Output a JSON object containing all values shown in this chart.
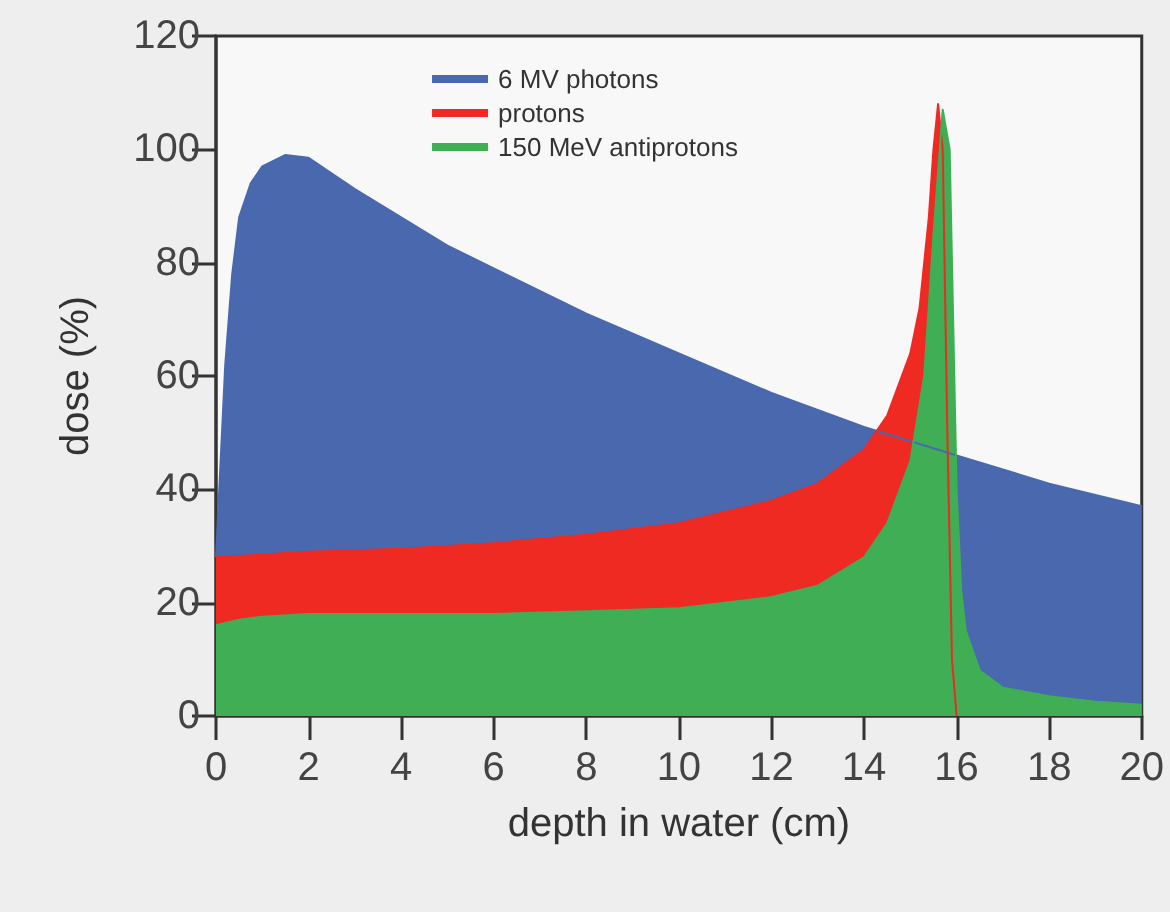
{
  "chart_data": {
    "type": "area",
    "xlabel": "depth in water (cm)",
    "ylabel": "dose (%)",
    "xlim": [
      0,
      20
    ],
    "xticks": [
      0,
      2,
      4,
      6,
      8,
      10,
      12,
      14,
      16,
      18,
      20
    ],
    "ylim": [
      0,
      120
    ],
    "yticks": [
      0,
      20,
      40,
      60,
      80,
      100,
      120
    ],
    "grid": false,
    "legend": "top",
    "series": [
      {
        "name": "6 MV photons",
        "color": "#4a68ae",
        "x": [
          0,
          0.1,
          0.2,
          0.35,
          0.5,
          0.75,
          1,
          1.5,
          2,
          3,
          4,
          5,
          6,
          8,
          10,
          12,
          14,
          16,
          18,
          20
        ],
        "values": [
          28,
          45,
          62,
          78,
          88,
          94,
          97,
          99,
          98.5,
          93,
          88,
          83,
          79,
          71,
          64,
          57,
          51,
          46,
          41,
          37
        ]
      },
      {
        "name": "protons",
        "color": "#ee2a22",
        "x": [
          0,
          1,
          2,
          4,
          6,
          8,
          10,
          11,
          12,
          13,
          13.5,
          14,
          14.5,
          15,
          15.2,
          15.4,
          15.5,
          15.6,
          15.7,
          15.8,
          15.9,
          16
        ],
        "values": [
          28,
          28.5,
          29,
          29.5,
          30.5,
          32,
          34,
          36,
          38,
          41,
          44,
          47,
          53,
          64,
          72,
          88,
          100,
          108,
          100,
          50,
          10,
          0
        ]
      },
      {
        "name": "150 MeV antiprotons",
        "color": "#3fae55",
        "x": [
          0,
          0.5,
          1,
          2,
          4,
          6,
          8,
          10,
          12,
          13,
          14,
          14.5,
          15,
          15.3,
          15.5,
          15.7,
          15.85,
          16,
          16.1,
          16.2,
          16.5,
          17,
          18,
          19,
          20
        ],
        "values": [
          16,
          17,
          17.5,
          18,
          18,
          18,
          18.5,
          19,
          21,
          23,
          28,
          34,
          45,
          60,
          85,
          107,
          100,
          40,
          22,
          15,
          8,
          5,
          3.5,
          2.5,
          2
        ]
      }
    ]
  }
}
